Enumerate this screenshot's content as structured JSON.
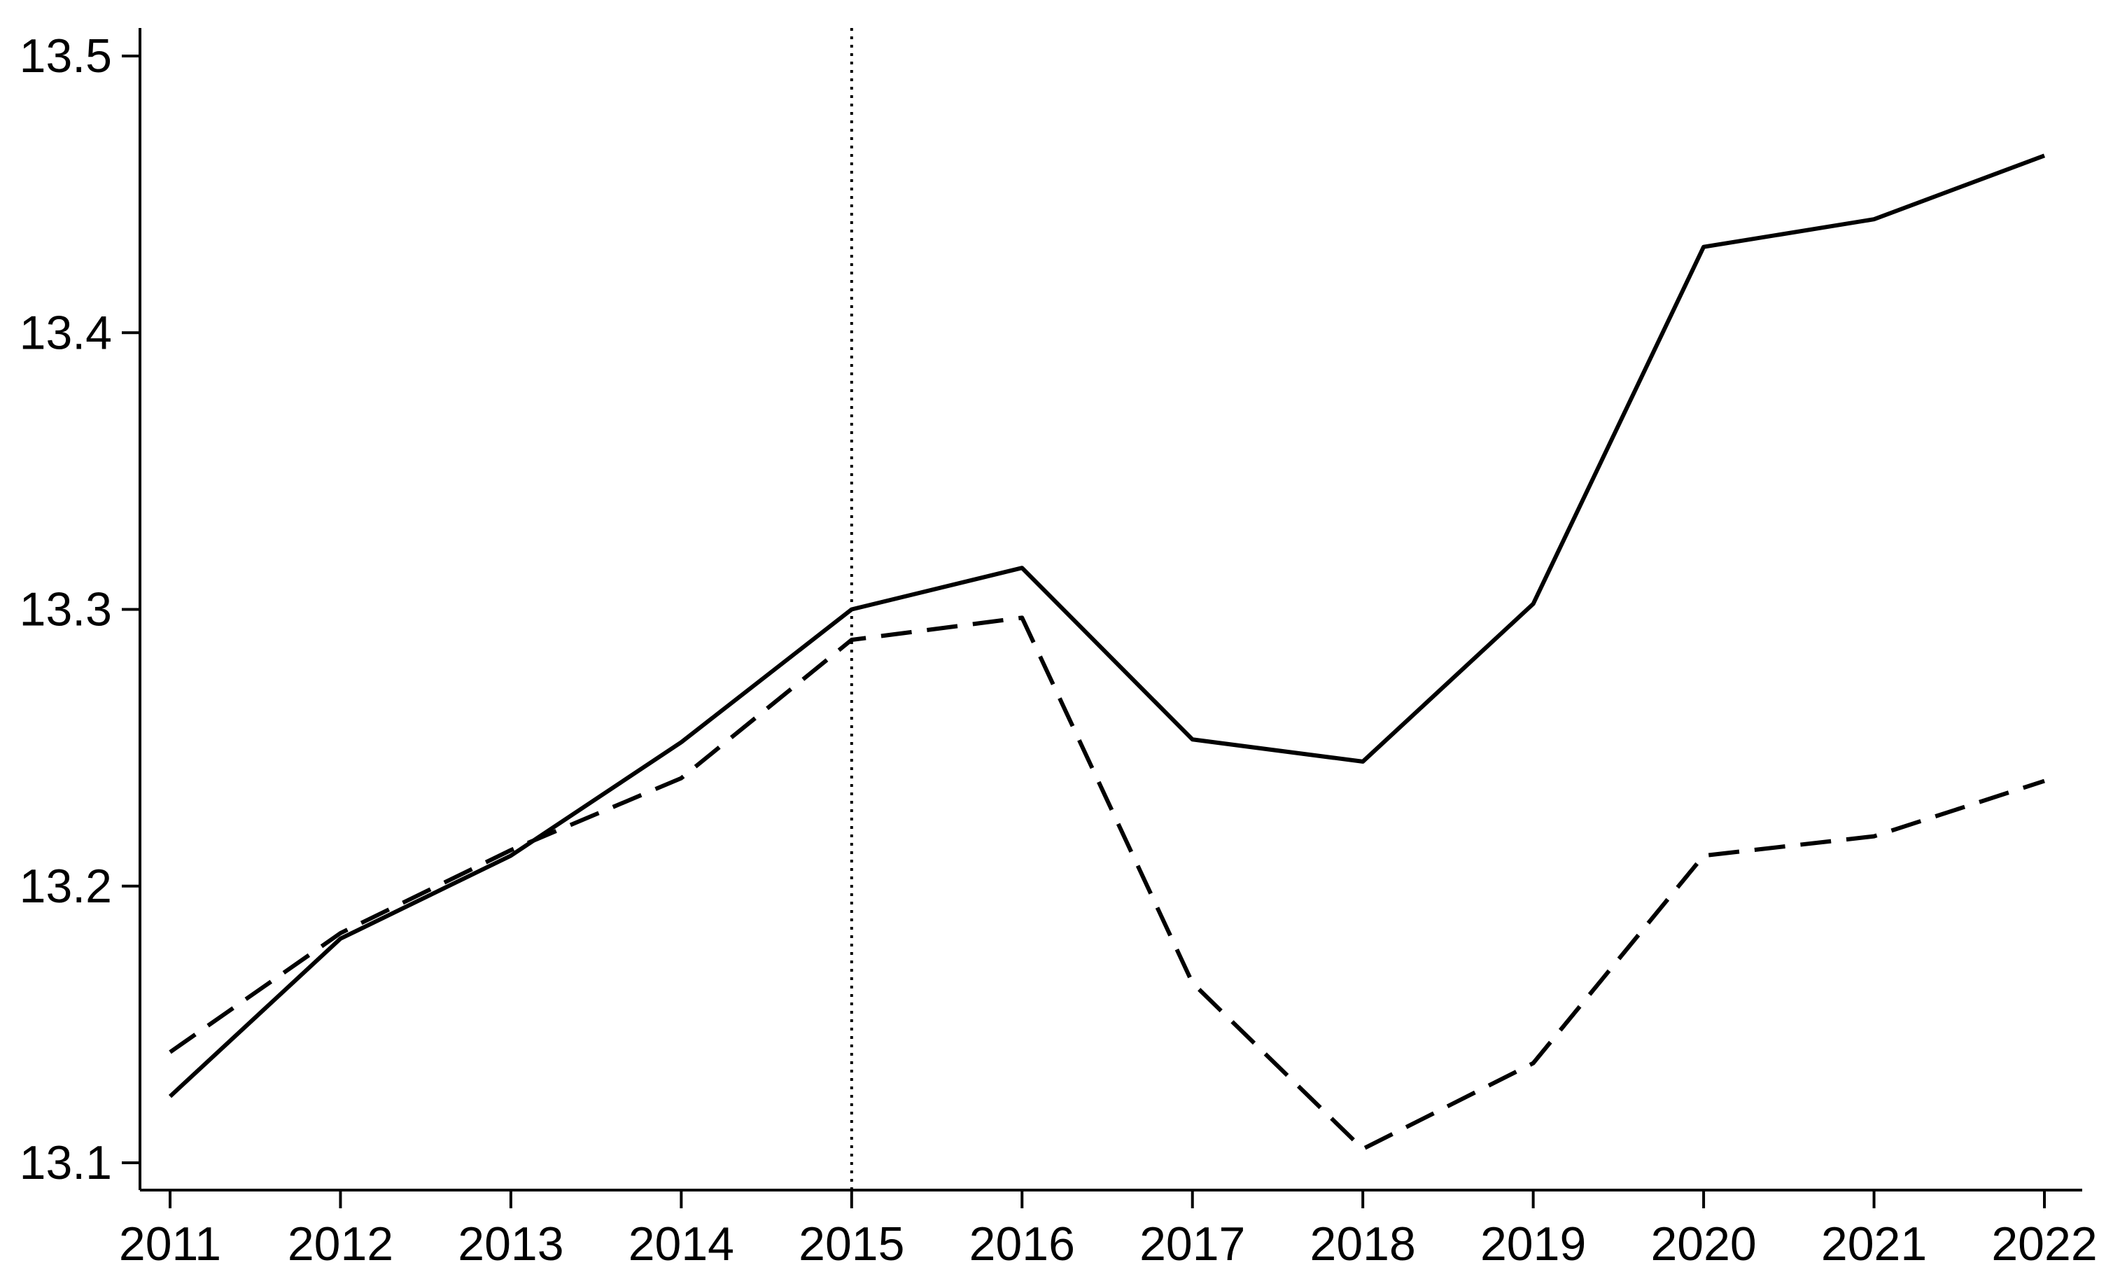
{
  "chart_data": {
    "type": "line",
    "title": "",
    "xlabel": "",
    "ylabel": "",
    "x": [
      2011,
      2012,
      2013,
      2014,
      2015,
      2016,
      2017,
      2018,
      2019,
      2020,
      2021,
      2022
    ],
    "xlim": [
      2010.8,
      2022.2
    ],
    "ylim": [
      13.09,
      13.51
    ],
    "yticks": [
      13.1,
      13.2,
      13.3,
      13.4,
      13.5
    ],
    "yticklabels": [
      "13.1",
      "13.2",
      "13.3",
      "13.4",
      "13.5"
    ],
    "xticklabels": [
      "2011",
      "2012",
      "2013",
      "2014",
      "2015",
      "2016",
      "2017",
      "2018",
      "2019",
      "2020",
      "2021",
      "2022"
    ],
    "grid": false,
    "legend": "none",
    "series": [
      {
        "line_style": "solid",
        "color": "#000000",
        "values": [
          13.124,
          13.181,
          13.211,
          13.252,
          13.3,
          13.315,
          13.253,
          13.245,
          13.302,
          13.431,
          13.441,
          13.464
        ]
      },
      {
        "line_style": "dashed",
        "color": "#000000",
        "values": [
          13.14,
          13.183,
          13.213,
          13.239,
          13.289,
          13.297,
          13.165,
          13.105,
          13.136,
          13.211,
          13.218,
          13.238
        ]
      }
    ],
    "reference_lines": [
      {
        "orientation": "vertical",
        "x": 2015,
        "line_style": "dotted",
        "color": "#000000"
      }
    ]
  }
}
